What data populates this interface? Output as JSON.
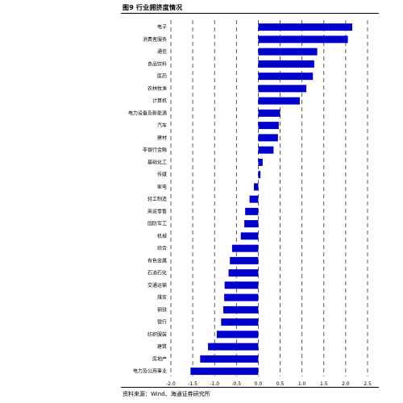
{
  "figure": {
    "title": "图9  行业拥挤度情况",
    "source": "资料来源：Wind、海通证券研究所"
  },
  "chart_data": {
    "type": "bar",
    "orientation": "horizontal",
    "categories": [
      "电子",
      "消费者服务",
      "通信",
      "食品饮料",
      "医药",
      "农林牧渔",
      "计算机",
      "电力设备及新能源",
      "汽车",
      "建材",
      "非银行金融",
      "基础化工",
      "传媒",
      "家电",
      "轻工制造",
      "商贸零售",
      "国防军工",
      "机械",
      "综合",
      "有色金属",
      "石油石化",
      "交通运输",
      "煤炭",
      "钢铁",
      "银行",
      "纺织服装",
      "建筑",
      "房地产",
      "电力及公用事业"
    ],
    "values": [
      2.15,
      2.05,
      1.35,
      1.28,
      1.25,
      1.1,
      0.95,
      0.5,
      0.47,
      0.45,
      0.35,
      0.1,
      0.05,
      -0.1,
      -0.2,
      -0.3,
      -0.32,
      -0.4,
      -0.6,
      -0.65,
      -0.68,
      -0.77,
      -0.78,
      -0.8,
      -0.85,
      -0.95,
      -1.15,
      -1.33,
      -1.55
    ],
    "xlim": [
      -2.0,
      2.5
    ],
    "xticks": [
      "-2.0",
      "-1.5",
      "-1.0",
      "-0.5",
      "0.0",
      "0.5",
      "1.0",
      "1.5",
      "2.0",
      "2.5"
    ],
    "bar_color": "#0000cc",
    "grid": "vertical dashed",
    "title": "",
    "xlabel": "",
    "ylabel": ""
  }
}
